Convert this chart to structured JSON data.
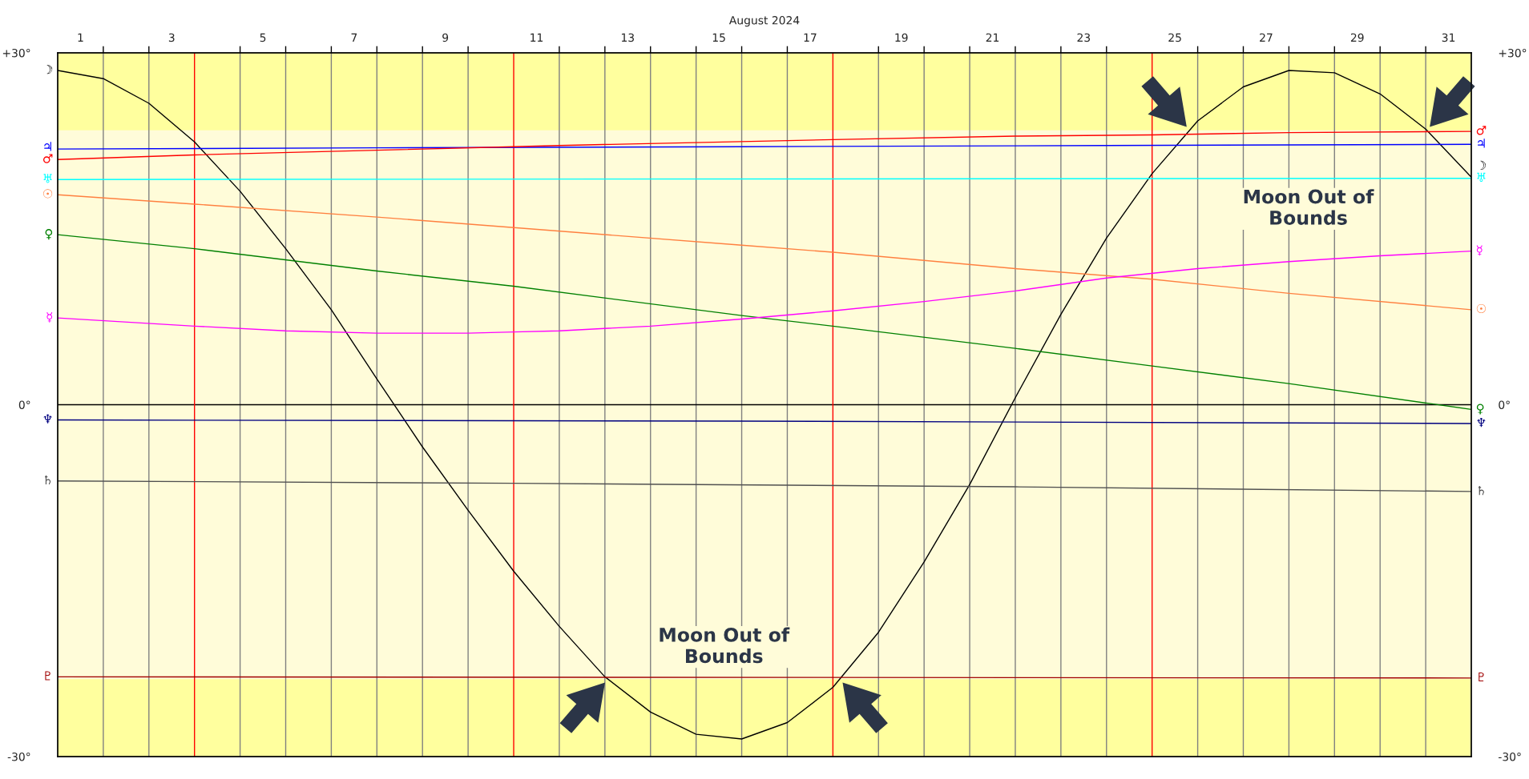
{
  "chart_data": {
    "type": "line",
    "xlabel": "August 2024",
    "xlim": [
      1,
      32
    ],
    "xticks": [
      {
        "value": 1.5,
        "label": "1"
      },
      {
        "value": 2,
        "label": null
      },
      {
        "value": 3,
        "label": null
      },
      {
        "value": 3.5,
        "label": "3"
      },
      {
        "value": 5,
        "label": null
      },
      {
        "value": 5.5,
        "label": "5"
      },
      {
        "value": 6,
        "label": null
      },
      {
        "value": 7,
        "label": null
      },
      {
        "value": 7.5,
        "label": "7"
      },
      {
        "value": 8,
        "label": null
      },
      {
        "value": 9,
        "label": null
      },
      {
        "value": 9.5,
        "label": "9"
      },
      {
        "value": 10,
        "label": null
      },
      {
        "value": 11.5,
        "label": "11"
      },
      {
        "value": 12,
        "label": null
      },
      {
        "value": 13,
        "label": null
      },
      {
        "value": 13.5,
        "label": "13"
      },
      {
        "value": 14,
        "label": null
      },
      {
        "value": 15,
        "label": null
      },
      {
        "value": 15.5,
        "label": "15"
      },
      {
        "value": 16,
        "label": null
      },
      {
        "value": 17,
        "label": null
      },
      {
        "value": 17.5,
        "label": "17"
      },
      {
        "value": 19,
        "label": null
      },
      {
        "value": 19.5,
        "label": "19"
      },
      {
        "value": 20,
        "label": null
      },
      {
        "value": 21,
        "label": null
      },
      {
        "value": 21.5,
        "label": "21"
      },
      {
        "value": 22,
        "label": null
      },
      {
        "value": 23,
        "label": null
      },
      {
        "value": 23.5,
        "label": "23"
      },
      {
        "value": 24,
        "label": null
      },
      {
        "value": 25.5,
        "label": "25"
      },
      {
        "value": 26,
        "label": null
      },
      {
        "value": 27,
        "label": null
      },
      {
        "value": 27.5,
        "label": "27"
      },
      {
        "value": 28,
        "label": null
      },
      {
        "value": 29,
        "label": null
      },
      {
        "value": 29.5,
        "label": "29"
      },
      {
        "value": 30,
        "label": null
      },
      {
        "value": 31,
        "label": null
      },
      {
        "value": 31.5,
        "label": "31"
      }
    ],
    "ylim": [
      -30,
      30
    ],
    "yticks": [
      {
        "value": 30,
        "label": "+30°"
      },
      {
        "value": 0,
        "label": "0°"
      },
      {
        "value": -30,
        "label": "-30°"
      }
    ],
    "y2lim": [
      -30,
      30
    ],
    "y2ticks": [
      {
        "value": 30,
        "label": "+30°"
      },
      {
        "value": 0,
        "label": "0°"
      },
      {
        "value": -30,
        "label": "-30°"
      }
    ],
    "grid": "x",
    "bands": [
      {
        "axis": "y",
        "from": 23.4,
        "to": 30,
        "color": "#ffff9e"
      },
      {
        "axis": "y",
        "from": -30,
        "to": -23.4,
        "color": "#ffff9e"
      }
    ],
    "ref_lines": [
      {
        "axis": "y",
        "value": 0,
        "color": "#000000"
      },
      {
        "axis": "x",
        "value": 4,
        "color": "#ff0000"
      },
      {
        "axis": "x",
        "value": 11,
        "color": "#ff0000"
      },
      {
        "axis": "x",
        "value": 18,
        "color": "#ff0000"
      },
      {
        "axis": "x",
        "value": 25,
        "color": "#ff0000"
      }
    ],
    "series": [
      {
        "name": "☽",
        "color": "#000000",
        "x": [
          1,
          2,
          3,
          4,
          5,
          6,
          7,
          8,
          9,
          10,
          11,
          12,
          13,
          14,
          15,
          16,
          17,
          18,
          19,
          20,
          21,
          22,
          23,
          24,
          25,
          26,
          27,
          28,
          29,
          30,
          31,
          32
        ],
        "values": [
          28.5,
          27.8,
          25.7,
          22.4,
          18.2,
          13.3,
          8.1,
          2.2,
          -3.6,
          -9.0,
          -14.2,
          -18.9,
          -23.2,
          -26.2,
          -28.1,
          -28.5,
          -27.1,
          -24.1,
          -19.4,
          -13.4,
          -6.8,
          0.6,
          7.7,
          14.2,
          19.7,
          24.2,
          27.1,
          28.5,
          28.3,
          26.5,
          23.5,
          19.4
        ]
      },
      {
        "name": "♃",
        "color": "#0000ff",
        "x": [
          1,
          8,
          16,
          24,
          32
        ],
        "values": [
          21.8,
          21.9,
          22.0,
          22.1,
          22.2
        ]
      },
      {
        "name": "♂",
        "color": "#ff0000",
        "x": [
          1,
          4,
          8,
          11,
          12,
          18,
          22,
          25,
          28,
          32
        ],
        "values": [
          20.9,
          21.3,
          21.7,
          22.0,
          22.1,
          22.6,
          22.9,
          23.0,
          23.2,
          23.3
        ]
      },
      {
        "name": "♅",
        "color": "#00ffff",
        "x": [
          1,
          32
        ],
        "values": [
          19.2,
          19.3
        ]
      },
      {
        "name": "☉",
        "color": "#ff8040",
        "x": [
          1,
          4,
          8,
          11,
          16,
          18,
          22,
          25,
          28,
          32
        ],
        "values": [
          17.9,
          17.1,
          16.0,
          15.1,
          13.6,
          13.0,
          11.6,
          10.7,
          9.5,
          8.1
        ]
      },
      {
        "name": "♀",
        "color": "#008000",
        "x": [
          1,
          4,
          8,
          11,
          16,
          18,
          22,
          25,
          28,
          32
        ],
        "values": [
          14.5,
          13.3,
          11.4,
          10.1,
          7.6,
          6.7,
          4.8,
          3.3,
          1.8,
          -0.4
        ]
      },
      {
        "name": "☿",
        "color": "#ff00ff",
        "x": [
          1,
          4,
          6,
          8,
          10,
          11,
          12,
          14,
          16,
          18,
          20,
          22,
          24,
          26,
          28,
          30,
          32
        ],
        "values": [
          7.4,
          6.7,
          6.3,
          6.1,
          6.1,
          6.2,
          6.3,
          6.7,
          7.3,
          8.0,
          8.8,
          9.7,
          10.8,
          11.6,
          12.2,
          12.7,
          13.1
        ]
      },
      {
        "name": "♆",
        "color": "#000080",
        "x": [
          1,
          16,
          32
        ],
        "values": [
          -1.3,
          -1.4,
          -1.6
        ]
      },
      {
        "name": "♄",
        "color": "#505050",
        "x": [
          1,
          11,
          22,
          32
        ],
        "values": [
          -6.5,
          -6.7,
          -7.0,
          -7.4
        ]
      },
      {
        "name": "♇",
        "color": "#a00000",
        "x": [
          1,
          32
        ],
        "values": [
          -23.2,
          -23.3
        ]
      }
    ],
    "annotations": [
      "Moon Out of\nBounds",
      "Moon Out of\nBounds"
    ]
  }
}
